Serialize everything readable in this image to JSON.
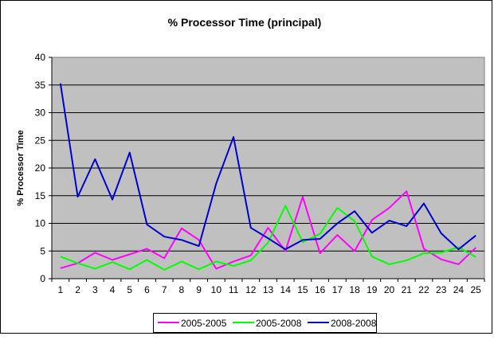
{
  "chart_data": {
    "type": "line",
    "title": "% Processor Time (principal)",
    "xlabel": "",
    "ylabel": "% Processor Time",
    "ylim": [
      0,
      40
    ],
    "yticks": [
      0,
      5,
      10,
      15,
      20,
      25,
      30,
      35,
      40
    ],
    "grid": true,
    "legend_position": "bottom",
    "plot_background": "#c0c0c0",
    "categories": [
      "1",
      "2",
      "3",
      "4",
      "5",
      "6",
      "7",
      "8",
      "9",
      "10",
      "11",
      "12",
      "13",
      "14",
      "15",
      "16",
      "17",
      "18",
      "19",
      "20",
      "21",
      "22",
      "23",
      "24",
      "25"
    ],
    "series": [
      {
        "name": "2005-2005",
        "color": "#ff00ff",
        "values": [
          1.9,
          2.8,
          4.7,
          3.4,
          4.4,
          5.4,
          3.7,
          9.1,
          7.0,
          1.8,
          3.1,
          4.2,
          9.2,
          5.0,
          14.8,
          4.6,
          7.9,
          5.0,
          10.6,
          12.8,
          15.8,
          5.4,
          3.5,
          2.6,
          5.6
        ]
      },
      {
        "name": "2005-2008",
        "color": "#00ff00",
        "values": [
          4.0,
          2.8,
          1.8,
          3.0,
          1.7,
          3.4,
          1.6,
          3.1,
          1.7,
          3.1,
          2.3,
          3.3,
          6.5,
          13.2,
          6.6,
          8.1,
          12.8,
          10.4,
          4.0,
          2.6,
          3.3,
          4.6,
          4.7,
          5.7,
          3.9
        ]
      },
      {
        "name": "2008-2008",
        "color": "#0000cc",
        "values": [
          35.3,
          14.8,
          21.6,
          14.3,
          22.8,
          9.8,
          7.6,
          7.0,
          5.9,
          17.2,
          25.6,
          9.2,
          7.3,
          5.3,
          7.0,
          7.2,
          10.0,
          12.2,
          8.3,
          10.5,
          9.5,
          13.6,
          8.2,
          5.3,
          7.8
        ]
      }
    ]
  }
}
